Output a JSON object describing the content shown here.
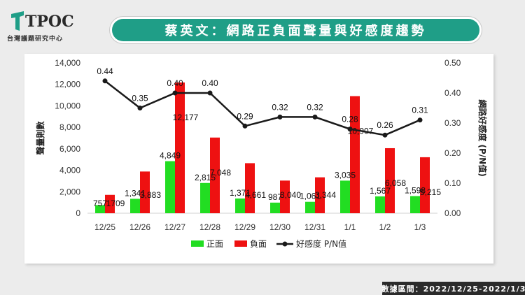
{
  "header": {
    "logo_text": "TPOC",
    "logo_sub": "台灣議題研究中心",
    "title": "蔡英文：網路正負面聲量與好感度趨勢"
  },
  "footer": {
    "range_label": "數據區間：2022/12/25-2022/1/3"
  },
  "colors": {
    "positive": "#22dd22",
    "negative": "#ee1111",
    "ratio_line": "#1a1a1a",
    "title_bar": "#1f9e87"
  },
  "chart_data": {
    "type": "bar",
    "categories": [
      "12/25",
      "12/26",
      "12/27",
      "12/28",
      "12/29",
      "12/30",
      "12/31",
      "1/1",
      "1/2",
      "1/3"
    ],
    "series": [
      {
        "name": "正面",
        "axis": "left",
        "values": [
          757,
          1341,
          4849,
          2815,
          1371,
          987,
          1061,
          3035,
          1567,
          1598
        ],
        "labels": [
          "757",
          "1,341",
          "4,849",
          "2,815",
          "1,371",
          "987",
          "1,061",
          "3,035",
          "1,567",
          "1,598"
        ]
      },
      {
        "name": "負面",
        "axis": "left",
        "values": [
          1709,
          3883,
          12177,
          7048,
          4661,
          3040,
          3344,
          10907,
          6058,
          5215
        ],
        "labels": [
          "1709",
          "3,883",
          "12,177",
          "7,048",
          "4,661",
          "3,040",
          "3,344",
          "10,907",
          "6,058",
          "5,215"
        ]
      },
      {
        "name": "好感度 P/N值",
        "type": "line",
        "axis": "right",
        "values": [
          0.44,
          0.35,
          0.4,
          0.4,
          0.29,
          0.32,
          0.32,
          0.28,
          0.26,
          0.31
        ],
        "labels": [
          "0.44",
          "0.35",
          "0.40",
          "0.40",
          "0.29",
          "0.32",
          "0.32",
          "0.28",
          "0.26",
          "0.31"
        ]
      }
    ],
    "ylabel": "聲量則數",
    "y2label": "網路好感度 (P/N值)",
    "ylim": [
      0,
      14000
    ],
    "y2lim": [
      0,
      0.5
    ],
    "yticks": [
      "0",
      "2,000",
      "4,000",
      "6,000",
      "8,000",
      "10,000",
      "12,000",
      "14,000"
    ],
    "y2ticks": [
      "0.00",
      "0.10",
      "0.20",
      "0.30",
      "0.40",
      "0.50"
    ],
    "grid": false,
    "legend_position": "bottom"
  }
}
